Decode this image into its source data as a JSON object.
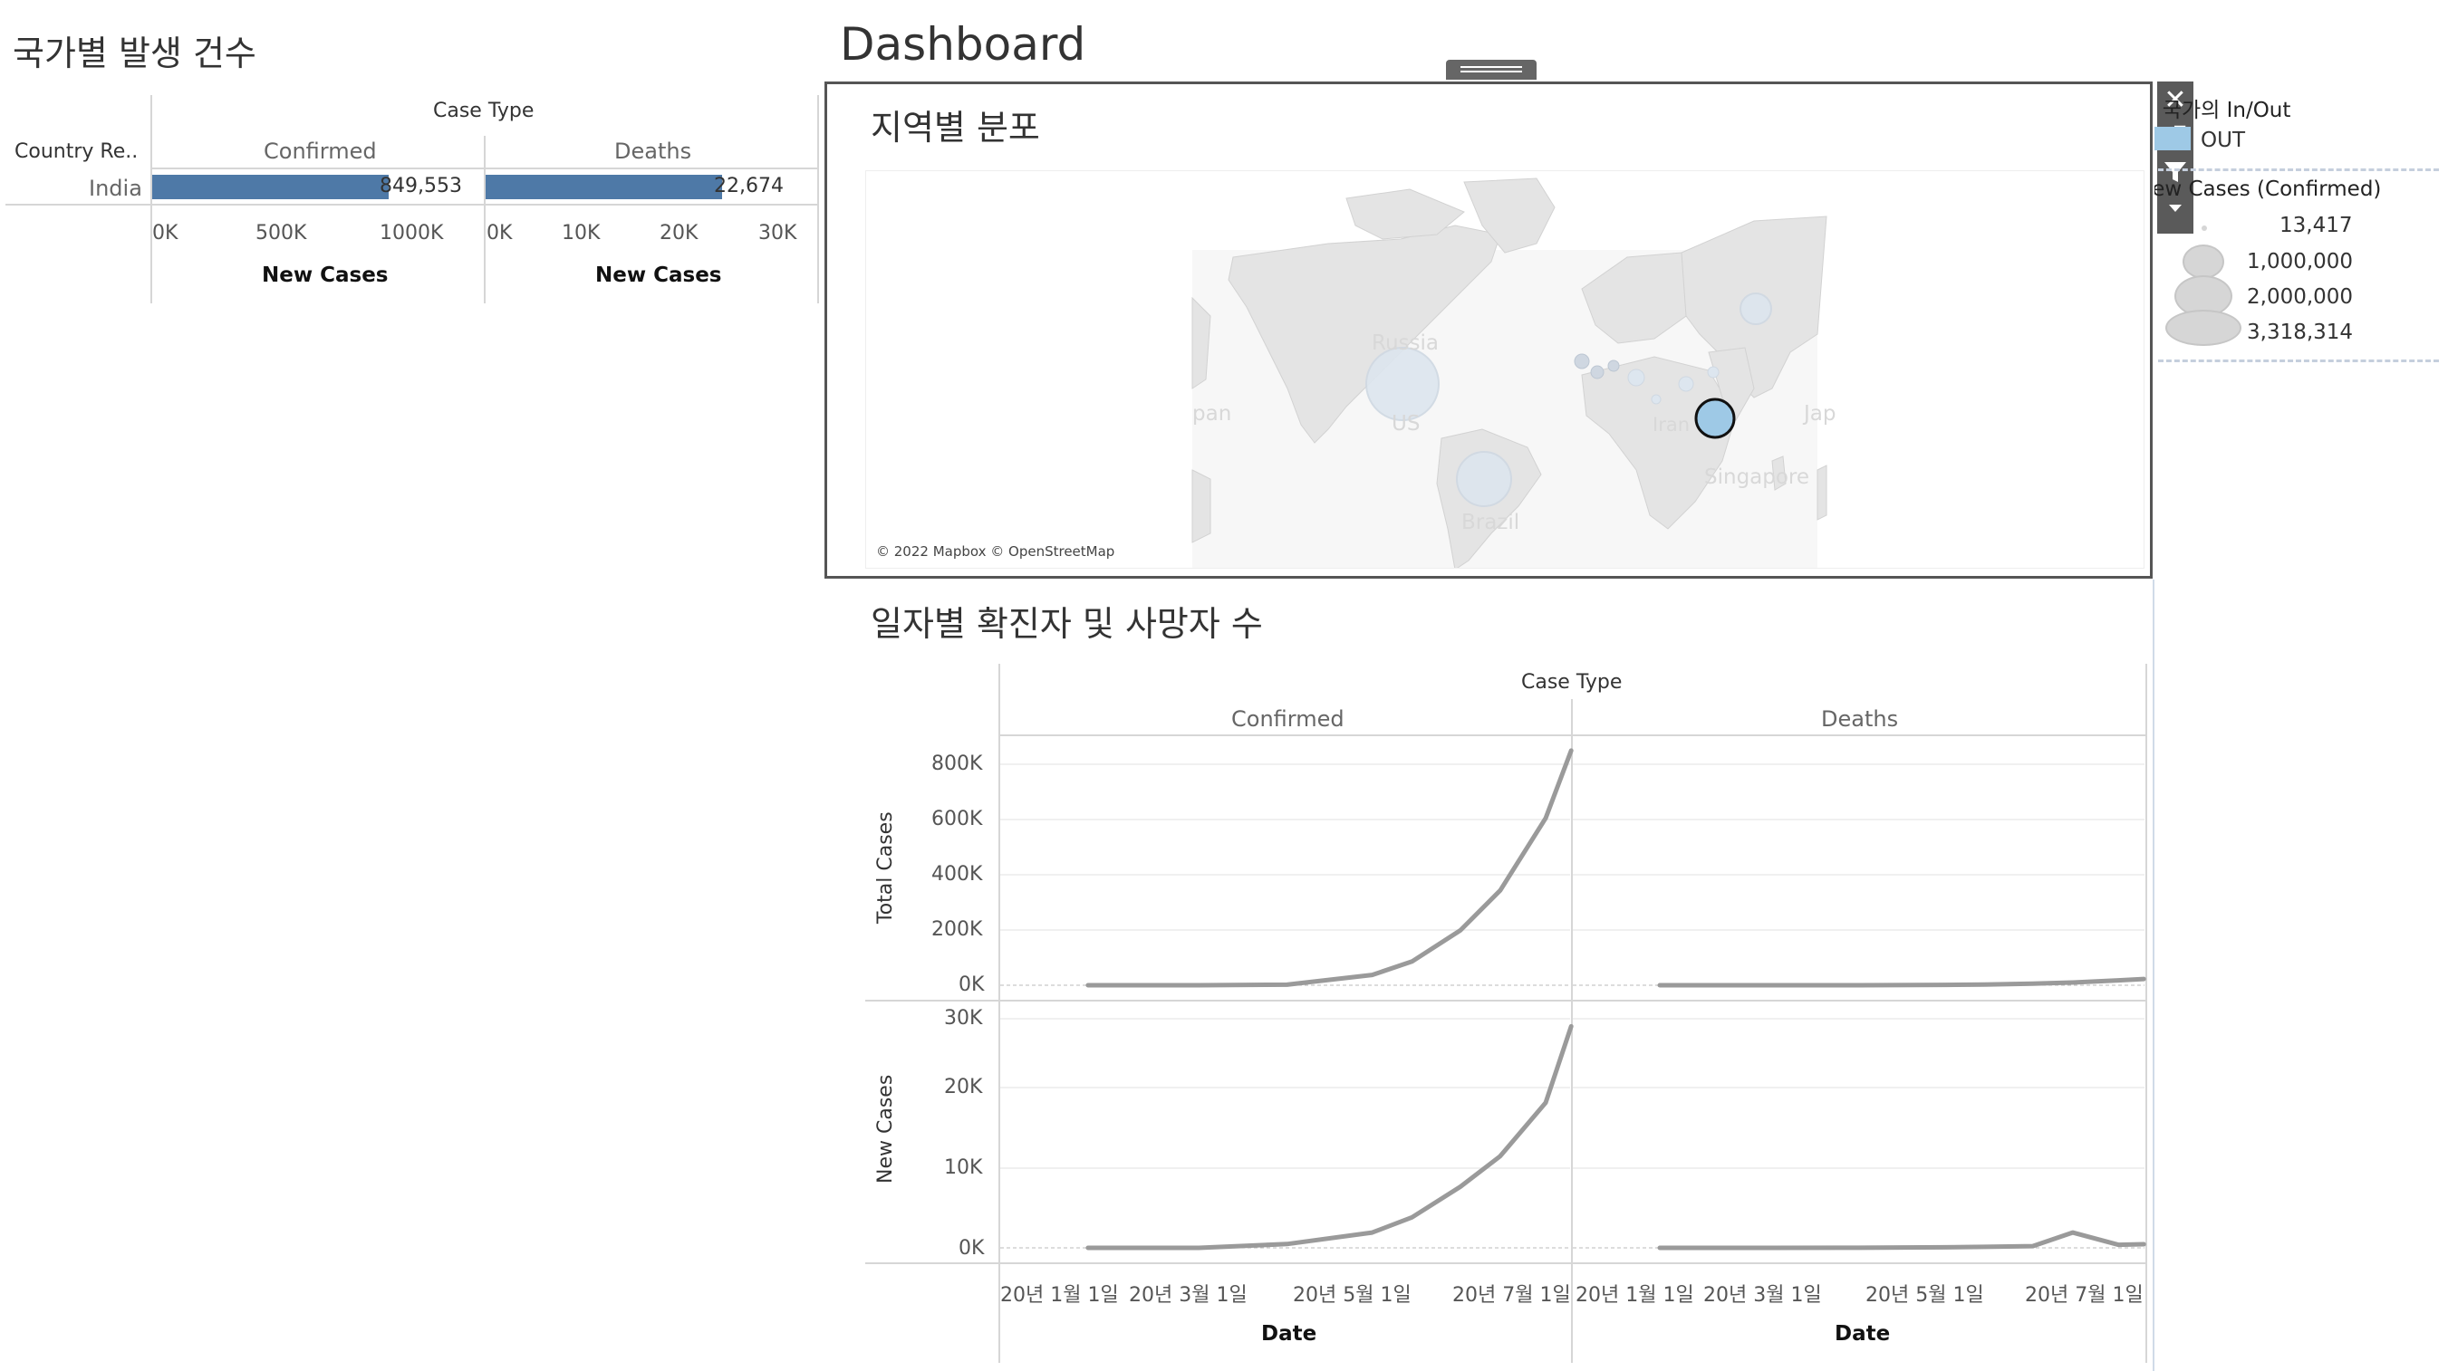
{
  "dashboard": {
    "title": "Dashboard"
  },
  "left_panel": {
    "title": "국가별 발생 건수",
    "case_type_header": "Case Type",
    "row_header": "Country Re..",
    "columns": [
      "Confirmed",
      "Deaths"
    ],
    "rows": [
      {
        "country": "India",
        "confirmed": "849,553",
        "deaths": "22,674"
      }
    ],
    "confirmed_axis": {
      "ticks": [
        "0K",
        "500K",
        "1000K"
      ],
      "label": "New Cases"
    },
    "deaths_axis": {
      "ticks": [
        "0K",
        "10K",
        "20K",
        "30K"
      ],
      "label": "New Cases"
    }
  },
  "map_panel": {
    "title": "지역별 분포",
    "attribution": "© 2022 Mapbox © OpenStreetMap",
    "labels": [
      "Russia",
      "pan",
      "US",
      "Iran",
      "Jap",
      "Singapore",
      "Brazil"
    ]
  },
  "toolbar": {
    "icons": [
      "close-icon",
      "popout-icon",
      "filter-icon",
      "more-options-icon"
    ]
  },
  "legend": {
    "inout_title": "선택된 국가의 In/Out",
    "inout_value": "OUT",
    "size_title": "New Cases (Confirmed)",
    "sizes": [
      "13,417",
      "1,000,000",
      "2,000,000",
      "3,318,314"
    ]
  },
  "line_panel": {
    "title": "일자별 확진자 및 사망자 수",
    "case_type_header": "Case Type",
    "columns": [
      "Confirmed",
      "Deaths"
    ],
    "row_labels": [
      "Total Cases",
      "New Cases"
    ],
    "total_ticks": [
      "800K",
      "600K",
      "400K",
      "200K",
      "0K"
    ],
    "new_ticks": [
      "30K",
      "20K",
      "10K",
      "0K"
    ],
    "date_ticks": [
      "20년 1월 1일",
      "20년 3월 1일",
      "20년 5월 1일",
      "20년 7월 1일"
    ],
    "x_label": "Date"
  },
  "chart_data": [
    {
      "type": "bar",
      "title": "국가별 발생 건수",
      "categories": [
        "India"
      ],
      "series": [
        {
          "name": "Confirmed",
          "values": [
            849553
          ]
        },
        {
          "name": "Deaths",
          "values": [
            22674
          ]
        }
      ],
      "xlabel": "New Cases",
      "xlim_confirmed": [
        0,
        1200000
      ],
      "xlim_deaths": [
        0,
        32000
      ]
    },
    {
      "type": "line",
      "title": "일자별 확진자 및 사망자 수",
      "x": [
        "2020-01-22",
        "2020-03-01",
        "2020-04-01",
        "2020-05-01",
        "2020-05-15",
        "2020-06-01",
        "2020-06-15",
        "2020-07-01",
        "2020-07-10"
      ],
      "series": [
        {
          "name": "Confirmed",
          "values": [
            0,
            3,
            1998,
            37257,
            85784,
            198706,
            343091,
            604641,
            849553
          ]
        },
        {
          "name": "Deaths",
          "values": [
            0,
            0,
            58,
            1223,
            2753,
            5608,
            9900,
            17834,
            22674
          ]
        }
      ],
      "ylabel": "Total Cases",
      "ylim": [
        0,
        900000
      ],
      "date_ticks": [
        "20년 1월 1일",
        "20년 3월 1일",
        "20년 5월 1일",
        "20년 7월 1일"
      ]
    },
    {
      "type": "line",
      "title": "일자별 확진자 및 사망자 수",
      "x": [
        "2020-01-22",
        "2020-03-01",
        "2020-04-01",
        "2020-05-01",
        "2020-05-15",
        "2020-06-01",
        "2020-06-15",
        "2020-07-01",
        "2020-07-10"
      ],
      "series": [
        {
          "name": "Confirmed",
          "values": [
            0,
            0,
            500,
            2000,
            4000,
            8000,
            12000,
            19000,
            29000
          ]
        },
        {
          "name": "Deaths",
          "values": [
            0,
            0,
            10,
            70,
            130,
            230,
            2000,
            400,
            480
          ]
        }
      ],
      "ylabel": "New Cases",
      "ylim": [
        0,
        32000
      ],
      "date_ticks": [
        "20년 1월 1일",
        "20년 3월 1일",
        "20년 5월 1일",
        "20년 7월 1일"
      ]
    }
  ]
}
